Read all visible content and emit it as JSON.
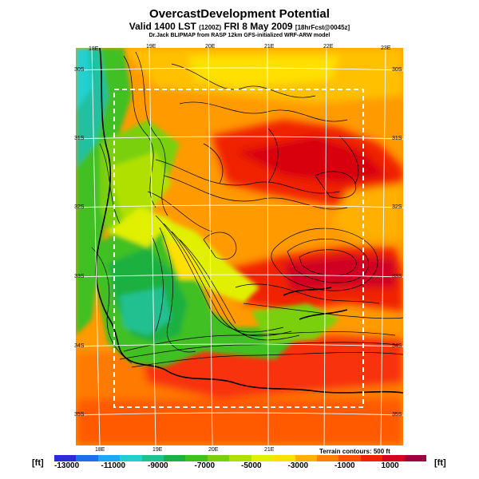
{
  "title": "OvercastDevelopment Potential",
  "subtitle_main": "Valid 1400 LST",
  "subtitle_time": "(1200Z)",
  "subtitle_date": "FRI 8 May 2009",
  "subtitle_fcst": "[18hrFcst@0045z]",
  "credit": "Dr.Jack BLIPMAP from RASP 12km GFS-initialized WRF-ARW model",
  "top_lon_labels": [
    "18E",
    "19E",
    "20E",
    "21E",
    "22E",
    "23E"
  ],
  "bottom_lon_labels": [
    "18E",
    "19E",
    "20E",
    "21E"
  ],
  "left_lat_labels": [
    "30S",
    "31S",
    "32S",
    "33S",
    "34S",
    "35S"
  ],
  "right_lat_labels": [
    "30S",
    "31S",
    "32S",
    "33S",
    "34S",
    "35S"
  ],
  "contour_note": "Terrain contours: 500 ft",
  "unit_left": "[ft]",
  "unit_right": "[ft]",
  "colorbar_ticks": [
    "-13000",
    "-11000",
    "-9000",
    "-7000",
    "-5000",
    "-3000",
    "-1000",
    "1000"
  ],
  "colorbar_colors": [
    "#2b2bd9",
    "#1e6fe8",
    "#1ea8f0",
    "#20d0d0",
    "#20c090",
    "#1eb040",
    "#40c020",
    "#7ad010",
    "#b0e000",
    "#e0f000",
    "#ffe000",
    "#ffb000",
    "#ff8000",
    "#ff5000",
    "#f02000",
    "#d80020",
    "#a00040"
  ]
}
